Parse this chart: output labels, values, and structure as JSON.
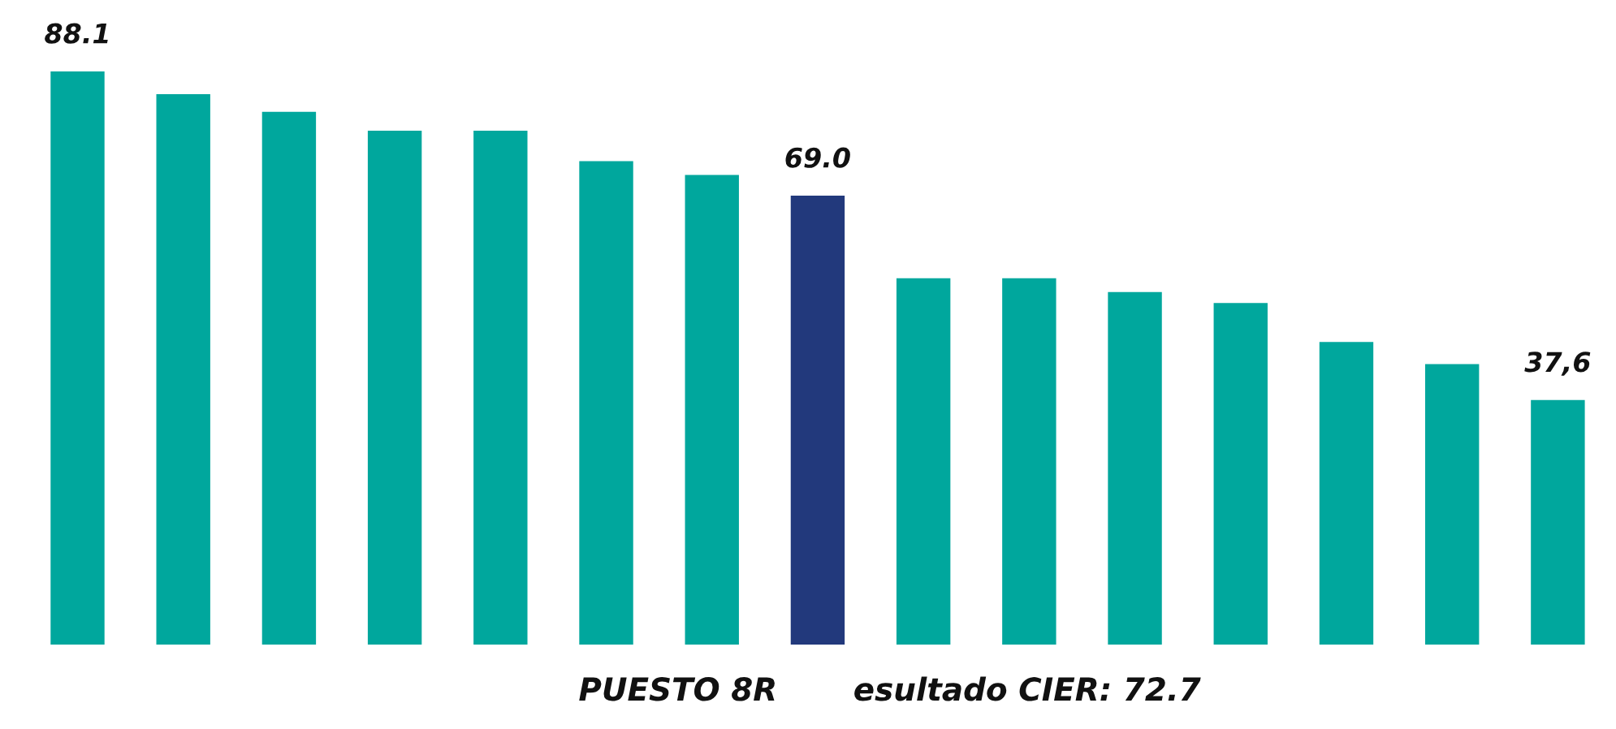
{
  "chart_data": {
    "type": "bar",
    "categories": [
      null,
      null,
      null,
      null,
      null,
      null,
      null,
      null,
      null,
      null,
      null,
      null,
      null,
      null,
      null
    ],
    "values": [
      88.1,
      84.6,
      81.9,
      79.0,
      79.0,
      74.3,
      72.2,
      69.0,
      56.3,
      56.3,
      54.2,
      52.5,
      46.5,
      43.1,
      37.6
    ],
    "colors": [
      "#00a79d",
      "#00a79d",
      "#00a79d",
      "#00a79d",
      "#00a79d",
      "#00a79d",
      "#00a79d",
      "#22397c",
      "#00a79d",
      "#00a79d",
      "#00a79d",
      "#00a79d",
      "#00a79d",
      "#00a79d",
      "#00a79d"
    ],
    "value_labels": [
      "88.1",
      null,
      null,
      null,
      null,
      null,
      null,
      "69.0",
      null,
      null,
      null,
      null,
      null,
      null,
      "37,6"
    ],
    "annotations": [
      "PUESTO 8R",
      "esultado CIER: 72.7"
    ],
    "grid": false,
    "legend": false
  }
}
